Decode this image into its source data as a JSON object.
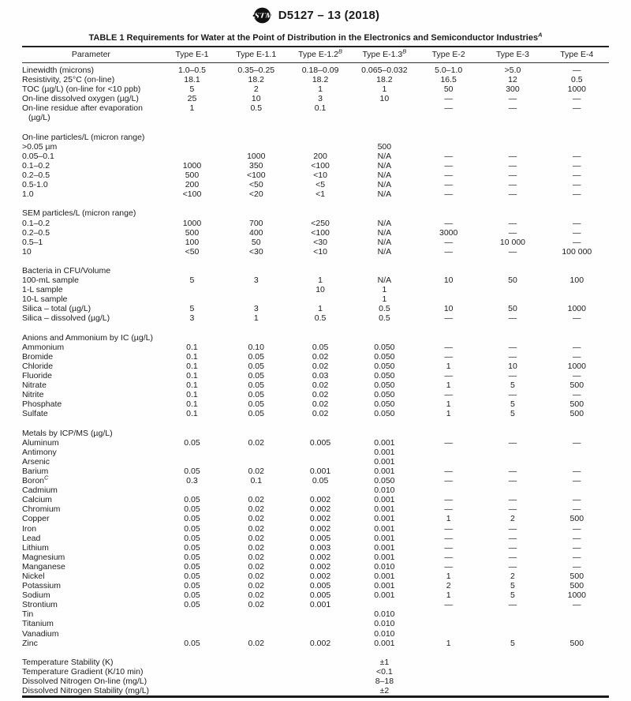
{
  "ink": {
    "text": "#1c1c1c",
    "rule": "#1a1a1a"
  },
  "header": {
    "logo": "astm-international-seal",
    "designation": "D5127 – 13 (2018)"
  },
  "table": {
    "title": "TABLE 1 Requirements for Water at the Point of Distribution in the Electronics and Semiconductor Industries",
    "title_footnote": "A",
    "columns": [
      {
        "label": "Parameter",
        "sup": ""
      },
      {
        "label": "Type E-1",
        "sup": ""
      },
      {
        "label": "Type E-1.1",
        "sup": ""
      },
      {
        "label": "Type E-1.2",
        "sup": "B"
      },
      {
        "label": "Type E-1.3",
        "sup": "B"
      },
      {
        "label": "Type E-2",
        "sup": ""
      },
      {
        "label": "Type E-3",
        "sup": ""
      },
      {
        "label": "Type E-4",
        "sup": ""
      }
    ],
    "rows": [
      {
        "type": "row",
        "indent": 1,
        "label": "Linewidth (microns)",
        "values": [
          "1.0–0.5",
          "0.35–0.25",
          "0.18–0.09",
          "0.065–0.032",
          "5.0–1.0",
          ">5.0",
          "—"
        ]
      },
      {
        "type": "row",
        "indent": 1,
        "label": "Resistivity, 25°C (on-line)",
        "values": [
          "18.1",
          "18.2",
          "18.2",
          "18.2",
          "16.5",
          "12",
          "0.5"
        ]
      },
      {
        "type": "row",
        "indent": 1,
        "label": "TOC (µg/L) (on-line for <10 ppb)",
        "values": [
          "5",
          "2",
          "1",
          "1",
          "50",
          "300",
          "1000"
        ]
      },
      {
        "type": "row",
        "indent": 1,
        "label": "On-line dissolved oxygen (µg/L)",
        "values": [
          "25",
          "10",
          "3",
          "10",
          "—",
          "—",
          "—"
        ]
      },
      {
        "type": "row",
        "indent": 1,
        "label": "On-line residue after evaporation",
        "label2": "(µg/L)",
        "values": [
          "1",
          "0.5",
          "0.1",
          "",
          "—",
          "—",
          "—"
        ]
      },
      {
        "type": "spacer"
      },
      {
        "type": "section",
        "label": "On-line particles/L (micron range)"
      },
      {
        "type": "row",
        "indent": 1,
        "label": ">0.05 µm",
        "values": [
          "",
          "",
          "",
          "500",
          "",
          "",
          ""
        ]
      },
      {
        "type": "row",
        "indent": 1,
        "label": "0.05–0.1",
        "values": [
          "",
          "1000",
          "200",
          "N/A",
          "—",
          "—",
          "—"
        ]
      },
      {
        "type": "row",
        "indent": 1,
        "label": "0.1–0.2",
        "values": [
          "1000",
          "350",
          "<100",
          "N/A",
          "—",
          "—",
          "—"
        ]
      },
      {
        "type": "row",
        "indent": 1,
        "label": "0.2–0.5",
        "values": [
          "500",
          "<100",
          "<10",
          "N/A",
          "—",
          "—",
          "—"
        ]
      },
      {
        "type": "row",
        "indent": 1,
        "label": "0.5-1.0",
        "values": [
          "200",
          "<50",
          "<5",
          "N/A",
          "—",
          "—",
          "—"
        ]
      },
      {
        "type": "row",
        "indent": 1,
        "label": "1.0",
        "values": [
          "<100",
          "<20",
          "<1",
          "N/A",
          "—",
          "—",
          "—"
        ]
      },
      {
        "type": "spacer"
      },
      {
        "type": "section",
        "label": "SEM particles/L (micron range)"
      },
      {
        "type": "row",
        "indent": 1,
        "label": "0.1–0.2",
        "values": [
          "1000",
          "700",
          "<250",
          "N/A",
          "—",
          "—",
          "—"
        ]
      },
      {
        "type": "row",
        "indent": 1,
        "label": "0.2–0.5",
        "values": [
          "500",
          "400",
          "<100",
          "N/A",
          "3000",
          "—",
          "—"
        ]
      },
      {
        "type": "row",
        "indent": 1,
        "label": "0.5–1",
        "values": [
          "100",
          "50",
          "<30",
          "N/A",
          "—",
          "10 000",
          "—"
        ]
      },
      {
        "type": "row",
        "indent": 1,
        "label": "10",
        "values": [
          "<50",
          "<30",
          "<10",
          "N/A",
          "—",
          "—",
          "100 000"
        ]
      },
      {
        "type": "spacer"
      },
      {
        "type": "section",
        "label": "Bacteria in CFU/Volume"
      },
      {
        "type": "row",
        "indent": 1,
        "label": "100-mL sample",
        "values": [
          "5",
          "3",
          "1",
          "N/A",
          "10",
          "50",
          "100"
        ]
      },
      {
        "type": "row",
        "indent": 1,
        "label": "1-L sample",
        "values": [
          "",
          "",
          "10",
          "1",
          "",
          "",
          ""
        ]
      },
      {
        "type": "row",
        "indent": 1,
        "label": "10-L sample",
        "values": [
          "",
          "",
          "",
          "1",
          "",
          "",
          ""
        ]
      },
      {
        "type": "row",
        "indent": 1,
        "label": "Silica – total (µg/L)",
        "values": [
          "5",
          "3",
          "1",
          "0.5",
          "10",
          "50",
          "1000"
        ]
      },
      {
        "type": "row",
        "indent": 1,
        "label": "Silica – dissolved (µg/L)",
        "values": [
          "3",
          "1",
          "0.5",
          "0.5",
          "—",
          "—",
          "—"
        ]
      },
      {
        "type": "spacer"
      },
      {
        "type": "section",
        "label": "Anions and Ammonium by IC (µg/L)"
      },
      {
        "type": "row",
        "indent": 1,
        "label": "Ammonium",
        "values": [
          "0.1",
          "0.10",
          "0.05",
          "0.050",
          "—",
          "—",
          "—"
        ]
      },
      {
        "type": "row",
        "indent": 1,
        "label": "Bromide",
        "values": [
          "0.1",
          "0.05",
          "0.02",
          "0.050",
          "—",
          "—",
          "—"
        ]
      },
      {
        "type": "row",
        "indent": 1,
        "label": "Chloride",
        "values": [
          "0.1",
          "0.05",
          "0.02",
          "0.050",
          "1",
          "10",
          "1000"
        ]
      },
      {
        "type": "row",
        "indent": 1,
        "label": "Fluoride",
        "values": [
          "0.1",
          "0.05",
          "0.03",
          "0.050",
          "—",
          "—",
          "—"
        ]
      },
      {
        "type": "row",
        "indent": 1,
        "label": "Nitrate",
        "values": [
          "0.1",
          "0.05",
          "0.02",
          "0.050",
          "1",
          "5",
          "500"
        ]
      },
      {
        "type": "row",
        "indent": 1,
        "label": "Nitrite",
        "values": [
          "0.1",
          "0.05",
          "0.02",
          "0.050",
          "—",
          "—",
          "—"
        ]
      },
      {
        "type": "row",
        "indent": 1,
        "label": "Phosphate",
        "values": [
          "0.1",
          "0.05",
          "0.02",
          "0.050",
          "1",
          "5",
          "500"
        ]
      },
      {
        "type": "row",
        "indent": 1,
        "label": "Sulfate",
        "values": [
          "0.1",
          "0.05",
          "0.02",
          "0.050",
          "1",
          "5",
          "500"
        ]
      },
      {
        "type": "spacer"
      },
      {
        "type": "section",
        "label": "Metals by ICP/MS (µg/L)"
      },
      {
        "type": "row",
        "indent": 1,
        "label": "Aluminum",
        "values": [
          "0.05",
          "0.02",
          "0.005",
          "0.001",
          "—",
          "—",
          "—"
        ]
      },
      {
        "type": "row",
        "indent": 1,
        "label": "Antimony",
        "values": [
          "",
          "",
          "",
          "0.001",
          "",
          "",
          ""
        ]
      },
      {
        "type": "row",
        "indent": 1,
        "label": "Arsenic",
        "values": [
          "",
          "",
          "",
          "0.001",
          "",
          "",
          ""
        ]
      },
      {
        "type": "row",
        "indent": 1,
        "label": "Barium",
        "values": [
          "0.05",
          "0.02",
          "0.001",
          "0.001",
          "—",
          "—",
          "—"
        ]
      },
      {
        "type": "row",
        "indent": 1,
        "label": "Boron",
        "sup": "C",
        "values": [
          "0.3",
          "0.1",
          "0.05",
          "0.050",
          "—",
          "—",
          "—"
        ]
      },
      {
        "type": "row",
        "indent": 1,
        "label": "Cadmium",
        "values": [
          "",
          "",
          "",
          "0.010",
          "",
          "",
          ""
        ]
      },
      {
        "type": "row",
        "indent": 1,
        "label": "Calcium",
        "values": [
          "0.05",
          "0.02",
          "0.002",
          "0.001",
          "—",
          "—",
          "—"
        ]
      },
      {
        "type": "row",
        "indent": 1,
        "label": "Chromium",
        "values": [
          "0.05",
          "0.02",
          "0.002",
          "0.001",
          "—",
          "—",
          "—"
        ]
      },
      {
        "type": "row",
        "indent": 1,
        "label": "Copper",
        "values": [
          "0.05",
          "0.02",
          "0.002",
          "0.001",
          "1",
          "2",
          "500"
        ]
      },
      {
        "type": "row",
        "indent": 1,
        "label": "Iron",
        "values": [
          "0.05",
          "0.02",
          "0.002",
          "0.001",
          "—",
          "—",
          "—"
        ]
      },
      {
        "type": "row",
        "indent": 1,
        "label": "Lead",
        "values": [
          "0.05",
          "0.02",
          "0.005",
          "0.001",
          "—",
          "—",
          "—"
        ]
      },
      {
        "type": "row",
        "indent": 1,
        "label": "Lithium",
        "values": [
          "0.05",
          "0.02",
          "0.003",
          "0.001",
          "—",
          "—",
          "—"
        ]
      },
      {
        "type": "row",
        "indent": 1,
        "label": "Magnesium",
        "values": [
          "0.05",
          "0.02",
          "0.002",
          "0.001",
          "—",
          "—",
          "—"
        ]
      },
      {
        "type": "row",
        "indent": 1,
        "label": "Manganese",
        "values": [
          "0.05",
          "0.02",
          "0.002",
          "0.010",
          "—",
          "—",
          "—"
        ]
      },
      {
        "type": "row",
        "indent": 1,
        "label": "Nickel",
        "values": [
          "0.05",
          "0.02",
          "0.002",
          "0.001",
          "1",
          "2",
          "500"
        ]
      },
      {
        "type": "row",
        "indent": 1,
        "label": "Potassium",
        "values": [
          "0.05",
          "0.02",
          "0.005",
          "0.001",
          "2",
          "5",
          "500"
        ]
      },
      {
        "type": "row",
        "indent": 1,
        "label": "Sodium",
        "values": [
          "0.05",
          "0.02",
          "0.005",
          "0.001",
          "1",
          "5",
          "1000"
        ]
      },
      {
        "type": "row",
        "indent": 1,
        "label": "Strontium",
        "values": [
          "0.05",
          "0.02",
          "0.001",
          "",
          "—",
          "—",
          "—"
        ]
      },
      {
        "type": "row",
        "indent": 1,
        "label": "Tin",
        "values": [
          "",
          "",
          "",
          "0.010",
          "",
          "",
          ""
        ]
      },
      {
        "type": "row",
        "indent": 1,
        "label": "Titanium",
        "values": [
          "",
          "",
          "",
          "0.010",
          "",
          "",
          ""
        ]
      },
      {
        "type": "row",
        "indent": 1,
        "label": "Vanadium",
        "values": [
          "",
          "",
          "",
          "0.010",
          "",
          "",
          ""
        ]
      },
      {
        "type": "row",
        "indent": 1,
        "label": "Zinc",
        "values": [
          "0.05",
          "0.02",
          "0.002",
          "0.001",
          "1",
          "5",
          "500"
        ]
      },
      {
        "type": "spacer"
      },
      {
        "type": "row",
        "indent": 0,
        "label": "Temperature Stability (K)",
        "values": [
          "",
          "",
          "",
          "±1",
          "",
          "",
          ""
        ]
      },
      {
        "type": "row",
        "indent": 0,
        "label": "Temperature Gradient (K/10 min)",
        "values": [
          "",
          "",
          "",
          "<0.1",
          "",
          "",
          ""
        ]
      },
      {
        "type": "row",
        "indent": 0,
        "label": "Dissolved Nitrogen On-line (mg/L)",
        "values": [
          "",
          "",
          "",
          "8–18",
          "",
          "",
          ""
        ]
      },
      {
        "type": "row",
        "indent": 0,
        "label": "Dissolved Nitrogen Stability (mg/L)",
        "values": [
          "",
          "",
          "",
          "±2",
          "",
          "",
          ""
        ]
      }
    ]
  }
}
